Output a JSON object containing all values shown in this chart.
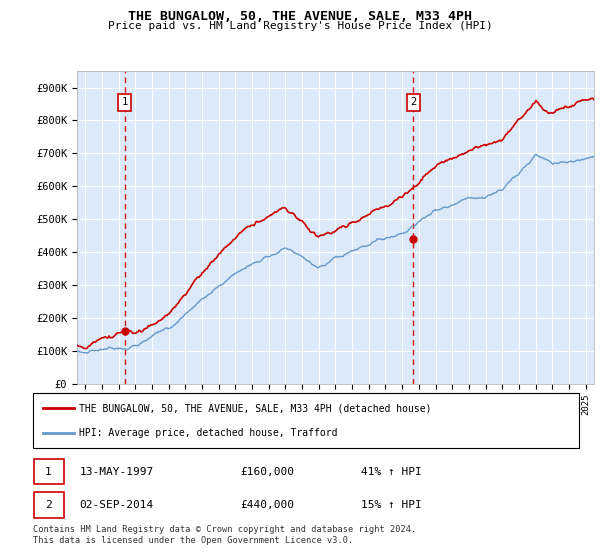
{
  "title": "THE BUNGALOW, 50, THE AVENUE, SALE, M33 4PH",
  "subtitle": "Price paid vs. HM Land Registry's House Price Index (HPI)",
  "ylim": [
    0,
    950000
  ],
  "yticks": [
    0,
    100000,
    200000,
    300000,
    400000,
    500000,
    600000,
    700000,
    800000,
    900000
  ],
  "ytick_labels": [
    "£0",
    "£100K",
    "£200K",
    "£300K",
    "£400K",
    "£500K",
    "£600K",
    "£700K",
    "£800K",
    "£900K"
  ],
  "background_color": "#dce9f8",
  "grid_color": "#ffffff",
  "purchase1_price": 160000,
  "purchase1_date_str": "13-MAY-1997",
  "purchase1_hpi": "41% ↑ HPI",
  "purchase2_price": 440000,
  "purchase2_date_str": "02-SEP-2014",
  "purchase2_hpi": "15% ↑ HPI",
  "legend_red": "THE BUNGALOW, 50, THE AVENUE, SALE, M33 4PH (detached house)",
  "legend_blue": "HPI: Average price, detached house, Trafford",
  "footer": "Contains HM Land Registry data © Crown copyright and database right 2024.\nThis data is licensed under the Open Government Licence v3.0.",
  "red_color": "#cc0000",
  "blue_color": "#6699cc",
  "p1_year": 1997.37,
  "p2_year": 2014.67,
  "xmin": 1994.5,
  "xmax": 2025.5
}
